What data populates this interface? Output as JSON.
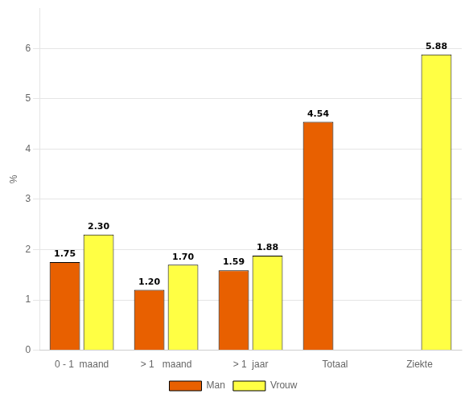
{
  "chart_data": {
    "type": "bar",
    "categories": [
      "0 - 1  maand",
      "> 1   maand",
      "> 1  jaar",
      "Totaal",
      "Ziekte"
    ],
    "series": [
      {
        "name": "Man",
        "color": "#E86000",
        "values": [
          1.75,
          1.2,
          1.59,
          4.54,
          null
        ],
        "value_labels": [
          "1.75",
          "1.20",
          "1.59",
          "4.54",
          null
        ]
      },
      {
        "name": "Vrouw",
        "color": "#FFFF44",
        "values": [
          2.3,
          1.7,
          1.88,
          null,
          5.88
        ],
        "value_labels": [
          "2.30",
          "1.70",
          "1.88",
          null,
          "5.88"
        ]
      }
    ],
    "ylabel": "%",
    "ylim": [
      0,
      6.8
    ],
    "yticks": [
      0,
      1,
      2,
      3,
      4,
      5,
      6
    ],
    "grid": true,
    "legend": "bottom",
    "data_labels": true
  }
}
